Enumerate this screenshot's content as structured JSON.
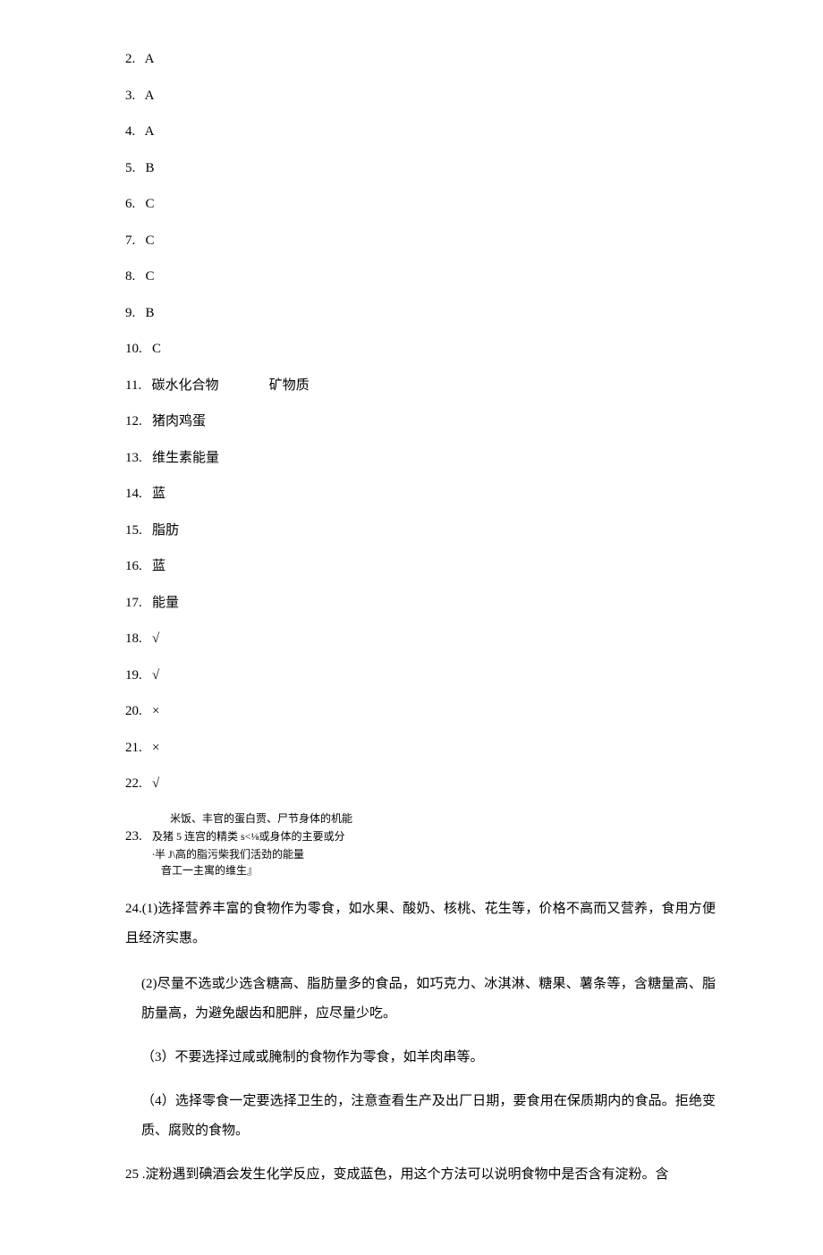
{
  "answers_numbered": [
    {
      "num": "2.",
      "text": "A"
    },
    {
      "num": "3.",
      "text": "A"
    },
    {
      "num": "4.",
      "text": "A"
    },
    {
      "num": "5.",
      "text": "B"
    },
    {
      "num": "6.",
      "text": "C"
    },
    {
      "num": "7.",
      "text": "C"
    },
    {
      "num": "8.",
      "text": "C"
    },
    {
      "num": "9.",
      "text": "B"
    },
    {
      "num": "10.",
      "text": "C"
    },
    {
      "num": "11.",
      "text": "碳水化合物               矿物质"
    },
    {
      "num": "12.",
      "text": "猪肉鸡蛋"
    },
    {
      "num": "13.",
      "text": "维生素能量"
    },
    {
      "num": "14.",
      "text": "蓝"
    },
    {
      "num": "15.",
      "text": "脂肪"
    },
    {
      "num": "16.",
      "text": "蓝"
    },
    {
      "num": "17.",
      "text": "能量"
    },
    {
      "num": "18.",
      "text": "√"
    },
    {
      "num": "19.",
      "text": "√"
    },
    {
      "num": "20.",
      "text": "×"
    },
    {
      "num": "21.",
      "text": "×"
    },
    {
      "num": "22.",
      "text": "√"
    }
  ],
  "q23": {
    "line1": "米饭、丰官的蛋白贾、尸节身体的机能",
    "line2_prefix": "23.   ",
    "line2": "及猪 5 连宫的精类 s<⅛或身体的主要或分",
    "line3": "∙半 J\\高的脂污柴我们活劲的能量",
    "line4": "音工一主寓的维生』"
  },
  "q24": {
    "intro": "24.(1)选择营养丰富的食物作为零食，如水果、酸奶、核桃、花生等，价格不高而又营养，食用方便且经济实惠。",
    "part2": "(2)尽量不选或少选含糖高、脂肪量多的食品，如巧克力、冰淇淋、糖果、薯条等，含糖量高、脂肪量高，为避免龈齿和肥胖，应尽量少吃。",
    "part3": "（3）不要选择过咸或腌制的食物作为零食，如羊肉串等。",
    "part4": "（4）选择零食一定要选择卫生的，注意查看生产及出厂日期，要食用在保质期内的食品。拒绝变质、腐败的食物。"
  },
  "q25": "25 .淀粉遇到碘酒会发生化学反应，变成蓝色，用这个方法可以说明食物中是否含有淀粉。含"
}
